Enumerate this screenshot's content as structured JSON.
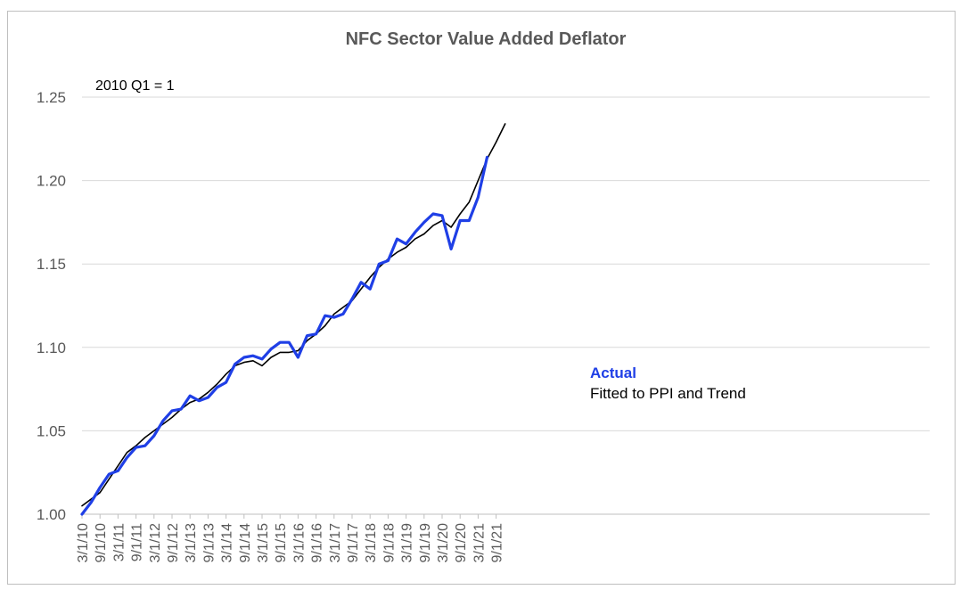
{
  "chart_data": {
    "type": "line",
    "title": "NFC Sector Value Added Deflator",
    "annotation": "2010 Q1 = 1",
    "xlabel": "",
    "ylabel": "",
    "ylim": [
      1.0,
      1.25
    ],
    "y_ticks": [
      "1.00",
      "1.05",
      "1.10",
      "1.15",
      "1.20",
      "1.25"
    ],
    "x_ticks": [
      "3/1/10",
      "9/1/10",
      "3/1/11",
      "9/1/11",
      "3/1/12",
      "9/1/12",
      "3/1/13",
      "9/1/13",
      "3/1/14",
      "9/1/14",
      "3/1/15",
      "9/1/15",
      "3/1/16",
      "9/1/16",
      "3/1/17",
      "9/1/17",
      "3/1/18",
      "9/1/18",
      "3/1/19",
      "9/1/19",
      "3/1/20",
      "9/1/20",
      "3/1/21",
      "9/1/21"
    ],
    "grid": "horizontal",
    "legend_placement": "center-right",
    "series": [
      {
        "name": "Actual",
        "color": "#1f3fe6",
        "values": [
          1.0,
          1.007,
          1.016,
          1.024,
          1.026,
          1.034,
          1.04,
          1.041,
          1.047,
          1.056,
          1.062,
          1.063,
          1.071,
          1.068,
          1.07,
          1.076,
          1.079,
          1.09,
          1.094,
          1.095,
          1.093,
          1.099,
          1.103,
          1.103,
          1.094,
          1.107,
          1.108,
          1.119,
          1.118,
          1.12,
          1.129,
          1.139,
          1.135,
          1.15,
          1.152,
          1.165,
          1.162,
          1.169,
          1.175,
          1.18,
          1.179,
          1.159,
          1.176,
          1.176,
          1.19,
          1.214
        ]
      },
      {
        "name": "Fitted to PPI and Trend",
        "color": "#000000",
        "values": [
          1.005,
          1.009,
          1.013,
          1.021,
          1.029,
          1.037,
          1.041,
          1.046,
          1.05,
          1.054,
          1.058,
          1.063,
          1.067,
          1.069,
          1.073,
          1.078,
          1.084,
          1.089,
          1.091,
          1.092,
          1.089,
          1.094,
          1.097,
          1.097,
          1.098,
          1.104,
          1.108,
          1.113,
          1.12,
          1.124,
          1.128,
          1.135,
          1.142,
          1.148,
          1.153,
          1.157,
          1.16,
          1.165,
          1.168,
          1.173,
          1.176,
          1.172,
          1.18,
          1.187,
          1.2,
          1.213,
          1.223,
          1.234
        ]
      }
    ]
  }
}
